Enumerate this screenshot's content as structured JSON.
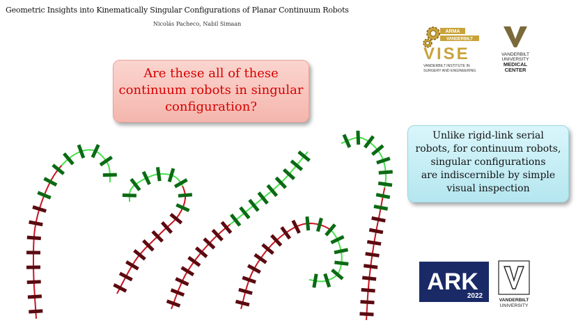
{
  "header": {
    "title": "Geometric Insights into Kinematically Singular Configurations of Planar Continuum Robots",
    "authors": "Nicolás Pacheco, Nabil Simaan"
  },
  "question": {
    "lines": [
      "Are these all of these",
      "continuum robots in singular",
      "configuration?"
    ]
  },
  "answer": {
    "lines": [
      "Unlike rigid-link serial",
      "robots, for continuum robots,",
      "singular configurations",
      "are indiscernible by simple",
      "visual inspection"
    ]
  },
  "logos": {
    "vise_badge_top": "ARMA",
    "vise_badge_bottom": "VANDERBILT",
    "vise": "VISE",
    "vise_sub1": "VANDERBILT INSTITUTE IN",
    "vise_sub2": "SURGERY AND ENGINEERING",
    "vumc_line1": "VANDERBILT",
    "vumc_line2": "UNIVERSITY",
    "vumc_line3": "MEDICAL",
    "vumc_line4": "CENTER",
    "ark": "ARK",
    "ark_year": "2022",
    "vu_line1": "VANDERBILT",
    "vu_line2": "UNIVERSITY"
  },
  "colors": {
    "proximal": "#c8141e",
    "proximal_disk": "#5a0a10",
    "distal": "#46e04a",
    "distal_disk": "#0b6a14",
    "question_text": "#d60000"
  }
}
